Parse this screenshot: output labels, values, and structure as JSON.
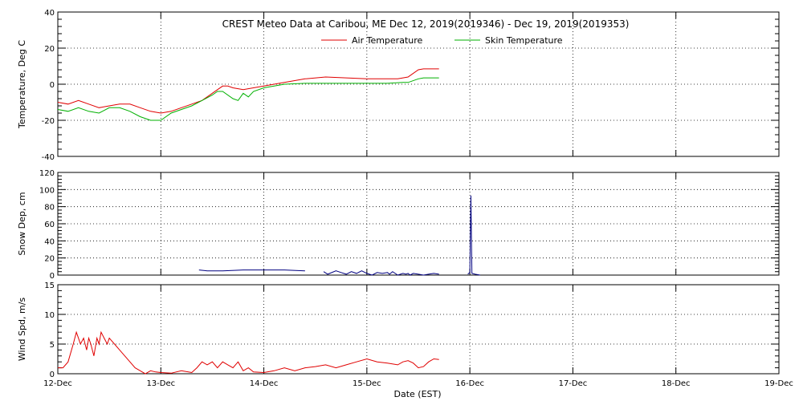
{
  "chart_data": {
    "title": "CREST Meteo Data at Caribou, ME   Dec 12, 2019(2019346) - Dec 19, 2019(2019353)",
    "xlabel": "Date (EST)",
    "x_tick_labels": [
      "12-Dec",
      "13-Dec",
      "14-Dec",
      "15-Dec",
      "16-Dec",
      "17-Dec",
      "18-Dec",
      "19-Dec"
    ],
    "xlim": [
      0,
      7
    ],
    "grid": true,
    "panels": [
      {
        "type": "line",
        "ylabel": "Temperature, Deg C",
        "ylim": [
          -40,
          40
        ],
        "yticks": [
          -40,
          -20,
          0,
          20,
          40
        ],
        "legend_position": "top-center",
        "series": [
          {
            "name": "Air Temperature",
            "color": "#e00000",
            "x": [
              0.0,
              0.1,
              0.2,
              0.3,
              0.4,
              0.5,
              0.6,
              0.7,
              0.8,
              0.9,
              1.0,
              1.1,
              1.2,
              1.3,
              1.4,
              1.5,
              1.55,
              1.6,
              1.65,
              1.7,
              1.8,
              1.9,
              2.0,
              2.2,
              2.4,
              2.6,
              2.8,
              3.0,
              3.2,
              3.3,
              3.35,
              3.4,
              3.5,
              3.55,
              3.6,
              3.65,
              3.7
            ],
            "y": [
              -10,
              -11,
              -9,
              -11,
              -13,
              -12,
              -11,
              -11,
              -13,
              -15,
              -16,
              -15,
              -13,
              -11,
              -9,
              -5,
              -3,
              -1,
              -1,
              -2,
              -3,
              -2,
              -1,
              1,
              3,
              4,
              3.5,
              3,
              3,
              3,
              3.5,
              4,
              8,
              8.5,
              8.5,
              8.5,
              8.5
            ]
          },
          {
            "name": "Skin Temperature",
            "color": "#00b000",
            "x": [
              0.0,
              0.1,
              0.2,
              0.3,
              0.4,
              0.5,
              0.6,
              0.7,
              0.8,
              0.9,
              1.0,
              1.1,
              1.2,
              1.3,
              1.4,
              1.5,
              1.55,
              1.6,
              1.7,
              1.75,
              1.8,
              1.85,
              1.9,
              2.0,
              2.2,
              2.4,
              2.6,
              2.8,
              3.0,
              3.2,
              3.35,
              3.4,
              3.5,
              3.55,
              3.6,
              3.65,
              3.7
            ],
            "y": [
              -14,
              -15,
              -13,
              -15,
              -16,
              -13,
              -13,
              -15,
              -18,
              -20,
              -20,
              -16,
              -14,
              -12,
              -9,
              -6,
              -4,
              -4,
              -8,
              -9,
              -5,
              -7,
              -4,
              -2,
              0,
              0.5,
              0.5,
              0.5,
              0.5,
              0.5,
              1,
              1,
              3,
              3.5,
              3.5,
              3.5,
              3.5
            ]
          }
        ]
      },
      {
        "type": "line",
        "ylabel": "Snow Dep, cm",
        "ylim": [
          0,
          120
        ],
        "yticks": [
          0,
          20,
          40,
          60,
          80,
          100,
          120
        ],
        "series": [
          {
            "name": "",
            "color": "#000080",
            "segments": [
              {
                "x": [
                  1.37,
                  1.45,
                  1.6,
                  1.8,
                  2.0,
                  2.2,
                  2.4
                ],
                "y": [
                  6,
                  5,
                  5,
                  6,
                  6,
                  6,
                  5
                ]
              },
              {
                "x": [
                  2.58,
                  2.62,
                  2.7,
                  2.75,
                  2.8,
                  2.85,
                  2.9,
                  2.95,
                  3.0,
                  3.05,
                  3.1,
                  3.15,
                  3.2,
                  3.22,
                  3.25,
                  3.3,
                  3.35,
                  3.38,
                  3.4,
                  3.42,
                  3.45,
                  3.5,
                  3.55,
                  3.6,
                  3.65,
                  3.7
                ],
                "y": [
                  4,
                  1,
                  5,
                  3,
                  1,
                  4,
                  2,
                  5,
                  2,
                  0,
                  3,
                  2,
                  3,
                  1,
                  4,
                  0,
                  2,
                  1,
                  2,
                  0,
                  2,
                  1,
                  0,
                  1,
                  2,
                  1
                ]
              },
              {
                "x": [
                  3.98,
                  4.0,
                  4.01,
                  4.02,
                  4.05,
                  4.1
                ],
                "y": [
                  1,
                  3,
                  93,
                  2,
                  1,
                  0
                ]
              }
            ]
          }
        ]
      },
      {
        "type": "line",
        "ylabel": "Wind Spd, m/s",
        "ylim": [
          0,
          15
        ],
        "yticks": [
          0,
          5,
          10,
          15
        ],
        "series": [
          {
            "name": "",
            "color": "#e00000",
            "x": [
              0.0,
              0.05,
              0.1,
              0.15,
              0.18,
              0.2,
              0.22,
              0.25,
              0.28,
              0.3,
              0.32,
              0.35,
              0.38,
              0.4,
              0.42,
              0.45,
              0.48,
              0.5,
              0.55,
              0.6,
              0.65,
              0.7,
              0.75,
              0.8,
              0.85,
              0.9,
              0.95,
              1.0,
              1.1,
              1.2,
              1.3,
              1.35,
              1.4,
              1.45,
              1.5,
              1.55,
              1.6,
              1.65,
              1.7,
              1.75,
              1.8,
              1.85,
              1.9,
              2.0,
              2.1,
              2.2,
              2.3,
              2.4,
              2.5,
              2.6,
              2.7,
              2.8,
              2.9,
              3.0,
              3.1,
              3.2,
              3.3,
              3.35,
              3.4,
              3.45,
              3.5,
              3.55,
              3.6,
              3.65,
              3.7
            ],
            "y": [
              1,
              1,
              2,
              5,
              7,
              6,
              5,
              6,
              4,
              6,
              5,
              3,
              6,
              5,
              7,
              6,
              5,
              6,
              5,
              4,
              3,
              2,
              1,
              0.5,
              0,
              0.5,
              0.3,
              0.2,
              0.1,
              0.5,
              0.2,
              1,
              2,
              1.5,
              2,
              1,
              2,
              1.5,
              1,
              2,
              0.5,
              1,
              0.3,
              0.2,
              0.5,
              1,
              0.5,
              1,
              1.2,
              1.5,
              1,
              1.5,
              2,
              2.5,
              2,
              1.8,
              1.5,
              2,
              2.2,
              1.8,
              1,
              1.2,
              2,
              2.5,
              2.4
            ]
          }
        ]
      }
    ]
  }
}
